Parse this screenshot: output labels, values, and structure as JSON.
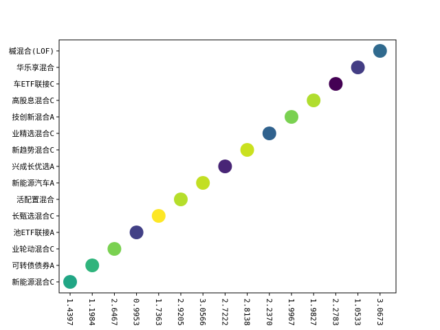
{
  "chart_data": {
    "type": "scatter",
    "title": "",
    "xlabel": "",
    "ylabel": "",
    "grid": false,
    "categories": [
      "新能源混合C",
      "可转债债券A",
      "业轮动混合C",
      "池ETF联接A",
      "长甄选混合C",
      "活配置混合",
      "新能源汽车A",
      "兴成长优选A",
      "新趋势混合C",
      "业精选混合C",
      "技创新混合A",
      "高股息混合C",
      "车ETF联接C",
      "华乐享混合",
      "槭混合(LOF)"
    ],
    "x_tick_labels": [
      "1.4397",
      "1.1984",
      "2.6467",
      "0.9953",
      "1.7363",
      "2.9205",
      "3.0566",
      "2.7222",
      "2.8138",
      "2.2370",
      "1.9967",
      "1.9827",
      "2.2783",
      "1.0533",
      "3.0673"
    ],
    "point_colors": [
      "#21a685",
      "#2fb47c",
      "#7ad151",
      "#424086",
      "#fde725",
      "#b5de2b",
      "#c2df23",
      "#482576",
      "#cae11f",
      "#30628e",
      "#7ad151",
      "#b0dd2f",
      "#440154",
      "#433d84",
      "#306a8e"
    ]
  }
}
